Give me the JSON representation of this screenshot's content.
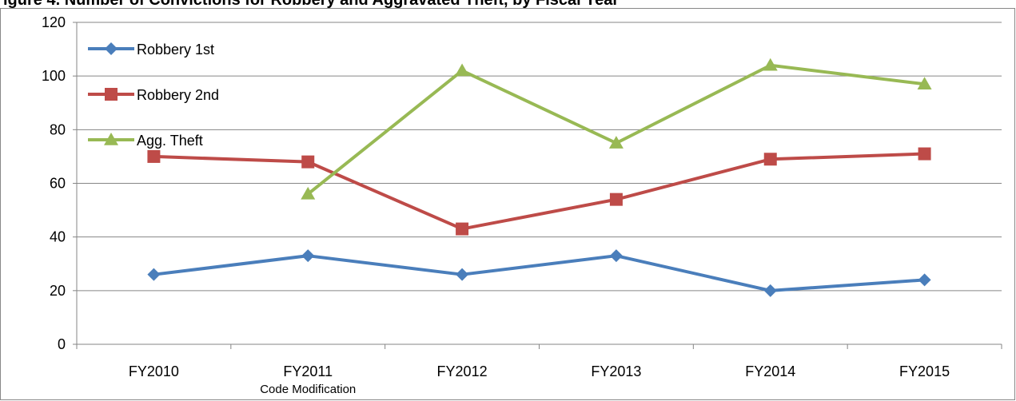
{
  "chart_data": {
    "type": "line",
    "title": "igure 4. Number of Convictions for Robbery and Aggravated Theft, by Fiscal Year",
    "categories": [
      "FY2010",
      "FY2011",
      "FY2012",
      "FY2013",
      "FY2014",
      "FY2015"
    ],
    "series": [
      {
        "name": "Robbery 1st",
        "color": "#4a7ebb",
        "marker": "diamond",
        "values": [
          26,
          33,
          26,
          33,
          20,
          24
        ]
      },
      {
        "name": "Robbery 2nd",
        "color": "#be4b48",
        "marker": "square",
        "values": [
          70,
          68,
          43,
          54,
          69,
          71
        ]
      },
      {
        "name": "Agg. Theft",
        "color": "#98b954",
        "marker": "triangle",
        "values": [
          null,
          56,
          102,
          75,
          104,
          97
        ]
      }
    ],
    "ylim": [
      0,
      120
    ],
    "yticks": [
      0,
      20,
      40,
      60,
      80,
      100,
      120
    ],
    "grid": true,
    "legend_position": "top-left",
    "annotation": {
      "text": "Code Modification",
      "category": "FY2011"
    },
    "xlabel": "",
    "ylabel": ""
  }
}
